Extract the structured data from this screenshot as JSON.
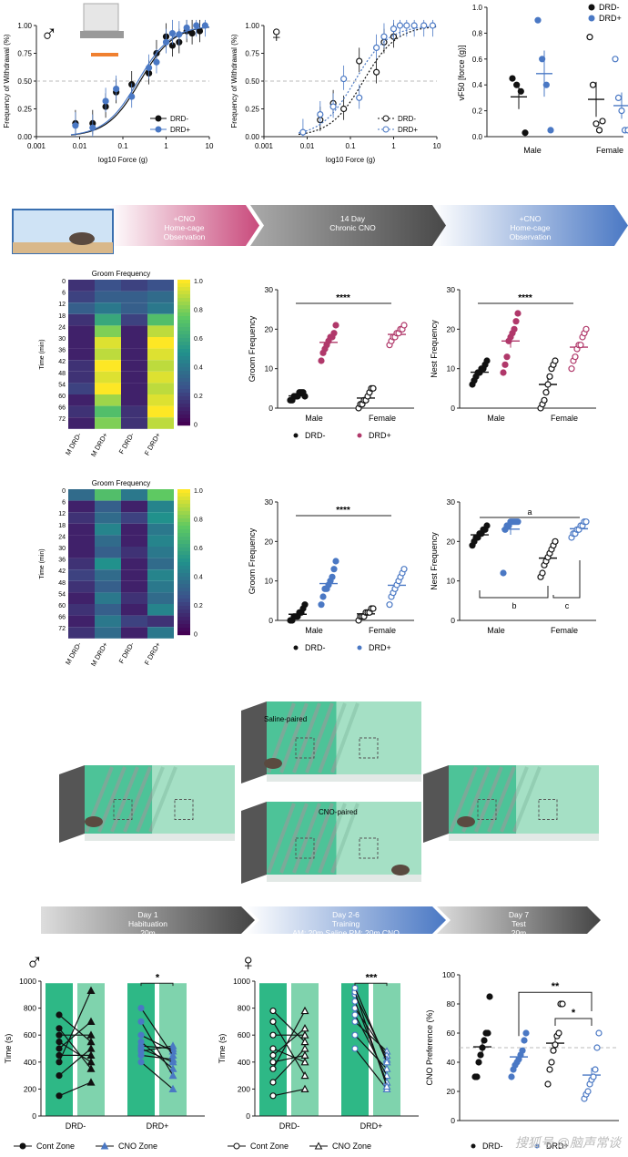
{
  "panel_a": {
    "male": {
      "sex_symbol": "♂",
      "ylabel": "Frequency of Withdrawal (%)",
      "xlabel": "log10 Force (g)",
      "yticks": [
        "0.00",
        "0.25",
        "0.50",
        "0.75",
        "1.00"
      ],
      "xticks": [
        "0.001",
        "0.01",
        "0.1",
        "1",
        "10"
      ],
      "legend": [
        "DRD-",
        "DRD+"
      ]
    },
    "female": {
      "sex_symbol": "♀",
      "ylabel": "Frequency of Withdrawal (%)",
      "xlabel": "log10 Force (g)",
      "yticks": [
        "0.00",
        "0.25",
        "0.50",
        "0.75",
        "1.00"
      ],
      "xticks": [
        "0.001",
        "0.01",
        "0.1",
        "1",
        "10"
      ],
      "legend": [
        "DRD-",
        "DRD+"
      ]
    },
    "vf50": {
      "ylabel": "vF50 [force (g)]",
      "yticks": [
        "0.0",
        "0.2",
        "0.4",
        "0.6",
        "0.8",
        "1.0"
      ],
      "categories": [
        "Male",
        "Female"
      ],
      "legend": [
        "DRD-",
        "DRD+"
      ]
    }
  },
  "timeline1": {
    "steps": [
      "+CNO\nHome-cage\nObservation",
      "14 Day\nChronic CNO",
      "+CNO\nHome-cage\nObservation"
    ]
  },
  "heatmaps": [
    {
      "title": "Groom Frequency",
      "ylabel": "Time (min)",
      "row_labels": [
        "0",
        "6",
        "12",
        "18",
        "24",
        "30",
        "36",
        "42",
        "48",
        "54",
        "60",
        "66",
        "72"
      ],
      "col_labels": [
        "M DRD-",
        "M DRD+",
        "F DRD-",
        "F DRD+"
      ],
      "colorbar_ticks": [
        "1.0",
        "0.8",
        "0.6",
        "0.4",
        "0.2",
        "0"
      ]
    },
    {
      "title": "Groom Frequency",
      "ylabel": "Time (min)",
      "row_labels": [
        "0",
        "6",
        "12",
        "18",
        "24",
        "30",
        "36",
        "42",
        "48",
        "54",
        "60",
        "66",
        "72"
      ],
      "col_labels": [
        "M DRD-",
        "M DRD+",
        "F DRD-",
        "F DRD+"
      ],
      "colorbar_ticks": [
        "1.0",
        "0.8",
        "0.6",
        "0.4",
        "0.2",
        "0"
      ]
    }
  ],
  "dotplots": {
    "groom1": {
      "ylabel": "Groom Frequency",
      "yticks": [
        "0",
        "10",
        "20",
        "30"
      ],
      "categories": [
        "Male",
        "Female"
      ],
      "sig": "****",
      "legend": [
        "DRD-",
        "DRD+"
      ]
    },
    "nest1": {
      "ylabel": "Nest Frequency",
      "yticks": [
        "0",
        "10",
        "20",
        "30"
      ],
      "categories": [
        "Male",
        "Female"
      ],
      "sig": "****"
    },
    "groom2": {
      "ylabel": "Groom Frequency",
      "yticks": [
        "0",
        "10",
        "20",
        "30"
      ],
      "categories": [
        "Male",
        "Female"
      ],
      "sig": "****",
      "legend": [
        "DRD-",
        "DRD+"
      ]
    },
    "nest2": {
      "ylabel": "Nest Frequency",
      "yticks": [
        "0",
        "10",
        "20",
        "30"
      ],
      "categories": [
        "Male",
        "Female"
      ],
      "sig_a": "a",
      "sig_b": "b",
      "sig_c": "c"
    }
  },
  "cpp_boxes": {
    "saline_label": "Saline-paired",
    "cno_label": "CNO-paired"
  },
  "timeline2": {
    "steps": [
      "Day 1\nHabituation\n20m",
      "Day 2-6\nTraining\nAM: 20m Saline   PM: 20m  CNO",
      "Day 7\nTest\n20m"
    ]
  },
  "panel_cpp": {
    "male": {
      "sex_symbol": "♂",
      "ylabel": "Time (s)",
      "yticks": [
        "0",
        "200",
        "400",
        "600",
        "800",
        "1000"
      ],
      "groups": [
        "DRD-",
        "DRD+"
      ],
      "sig": "*",
      "legend": [
        "Cont Zone",
        "CNO Zone"
      ]
    },
    "female": {
      "sex_symbol": "♀",
      "ylabel": "Time (s)",
      "yticks": [
        "0",
        "200",
        "400",
        "600",
        "800",
        "1000"
      ],
      "groups": [
        "DRD-",
        "DRD+"
      ],
      "sig": "***",
      "legend": [
        "Cont Zone",
        "CNO Zone"
      ]
    },
    "pref": {
      "ylabel": "CNO Preference (%)",
      "yticks": [
        "0",
        "20",
        "40",
        "60",
        "80",
        "100"
      ],
      "sig1": "**",
      "sig2": "*",
      "legend": [
        "DRD-",
        "DRD+"
      ]
    }
  },
  "watermark": "搜狐号 @脑声常谈",
  "colors": {
    "black": "#111111",
    "blue": "#4a78c4",
    "pink": "#b0386a",
    "green": "#2eb886",
    "lightgreen": "#7fd3ad"
  },
  "chart_data": [
    {
      "type": "line",
      "title": "",
      "xlabel": "log10 Force (g)",
      "ylabel": "Frequency of Withdrawal (%)",
      "x_scale": "log",
      "xlim": [
        0.001,
        10
      ],
      "ylim": [
        0,
        1
      ],
      "series": [
        {
          "name": "DRD-",
          "x": [
            0.008,
            0.02,
            0.04,
            0.07,
            0.16,
            0.4,
            0.6,
            1,
            1.4,
            2,
            3,
            4,
            6
          ],
          "y": [
            0.12,
            0.12,
            0.27,
            0.4,
            0.47,
            0.57,
            0.75,
            0.9,
            0.82,
            0.85,
            0.95,
            0.93,
            0.95
          ]
        },
        {
          "name": "DRD+",
          "x": [
            0.008,
            0.02,
            0.04,
            0.07,
            0.16,
            0.4,
            0.6,
            1,
            1.4,
            2,
            3,
            5,
            8
          ],
          "y": [
            0.1,
            0.08,
            0.32,
            0.43,
            0.36,
            0.62,
            0.67,
            0.85,
            0.93,
            0.92,
            0.98,
            1.0,
            1.0
          ]
        }
      ]
    },
    {
      "type": "line",
      "title": "",
      "xlabel": "log10 Force (g)",
      "ylabel": "Frequency of Withdrawal (%)",
      "x_scale": "log",
      "xlim": [
        0.001,
        10
      ],
      "ylim": [
        0,
        1
      ],
      "series": [
        {
          "name": "DRD-",
          "x": [
            0.02,
            0.04,
            0.07,
            0.16,
            0.4,
            0.6,
            1
          ],
          "y": [
            0.15,
            0.3,
            0.25,
            0.68,
            0.58,
            0.85,
            0.9
          ]
        },
        {
          "name": "DRD+",
          "x": [
            0.008,
            0.02,
            0.04,
            0.07,
            0.16,
            0.4,
            0.6,
            1,
            1.4,
            2,
            3,
            5,
            8
          ],
          "y": [
            0.04,
            0.2,
            0.27,
            0.52,
            0.35,
            0.8,
            0.9,
            0.97,
            1.0,
            1.0,
            1.0,
            1.0,
            1.0
          ]
        }
      ]
    },
    {
      "type": "scatter",
      "ylabel": "vF50 [force (g)]",
      "ylim": [
        0,
        1
      ],
      "categories": [
        "Male",
        "Female"
      ],
      "series": [
        {
          "name": "DRD-",
          "Male": [
            0.45,
            0.4,
            0.35,
            0.03
          ],
          "Female": [
            0.77,
            0.4,
            0.1,
            0.05,
            0.12
          ]
        },
        {
          "name": "DRD+",
          "Male": [
            0.9,
            0.6,
            0.4,
            0.05
          ],
          "Female": [
            0.6,
            0.3,
            0.2,
            0.05,
            0.05
          ]
        }
      ]
    },
    {
      "type": "heatmap",
      "title": "Groom Frequency",
      "rows": [
        "0",
        "6",
        "12",
        "18",
        "24",
        "30",
        "36",
        "42",
        "48",
        "54",
        "60",
        "66",
        "72"
      ],
      "cols": [
        "M DRD-",
        "M DRD+",
        "F DRD-",
        "F DRD+"
      ],
      "values": [
        [
          0.15,
          0.25,
          0.2,
          0.25
        ],
        [
          0.2,
          0.3,
          0.3,
          0.35
        ],
        [
          0.3,
          0.4,
          0.3,
          0.4
        ],
        [
          0.15,
          0.6,
          0.2,
          0.7
        ],
        [
          0.1,
          0.8,
          0.1,
          0.9
        ],
        [
          0.1,
          0.95,
          0.1,
          1.0
        ],
        [
          0.1,
          0.9,
          0.1,
          0.95
        ],
        [
          0.15,
          1.0,
          0.1,
          0.9
        ],
        [
          0.15,
          0.95,
          0.1,
          0.95
        ],
        [
          0.2,
          1.0,
          0.1,
          0.9
        ],
        [
          0.1,
          0.85,
          0.1,
          0.95
        ],
        [
          0.15,
          0.7,
          0.15,
          1.0
        ],
        [
          0.1,
          0.8,
          0.15,
          0.9
        ]
      ]
    },
    {
      "type": "heatmap",
      "title": "Groom Frequency",
      "rows": [
        "0",
        "6",
        "12",
        "18",
        "24",
        "30",
        "36",
        "42",
        "48",
        "54",
        "60",
        "66",
        "72"
      ],
      "cols": [
        "M DRD-",
        "M DRD+",
        "F DRD-",
        "F DRD+"
      ],
      "values": [
        [
          0.35,
          0.7,
          0.4,
          0.75
        ],
        [
          0.1,
          0.3,
          0.1,
          0.45
        ],
        [
          0.15,
          0.35,
          0.2,
          0.5
        ],
        [
          0.1,
          0.45,
          0.1,
          0.4
        ],
        [
          0.1,
          0.35,
          0.1,
          0.45
        ],
        [
          0.1,
          0.3,
          0.15,
          0.4
        ],
        [
          0.15,
          0.5,
          0.1,
          0.35
        ],
        [
          0.2,
          0.35,
          0.1,
          0.45
        ],
        [
          0.15,
          0.3,
          0.1,
          0.4
        ],
        [
          0.1,
          0.4,
          0.15,
          0.35
        ],
        [
          0.15,
          0.3,
          0.1,
          0.45
        ],
        [
          0.1,
          0.4,
          0.2,
          0.15
        ],
        [
          0.15,
          0.35,
          0.1,
          0.4
        ]
      ]
    },
    {
      "type": "scatter",
      "ylabel": "Groom Frequency",
      "ylim": [
        0,
        30
      ],
      "categories": [
        "Male",
        "Female"
      ],
      "series": [
        {
          "name": "DRD-",
          "Male": [
            2,
            2,
            3,
            3,
            3,
            4,
            4,
            4,
            3
          ],
          "Female": [
            0,
            1,
            1,
            2,
            2,
            3,
            4,
            5,
            5
          ]
        },
        {
          "name": "DRD+",
          "Male": [
            12,
            14,
            15,
            16,
            17,
            18,
            18,
            19,
            21
          ],
          "Female": [
            16,
            17,
            18,
            18,
            19,
            19,
            20,
            20,
            21
          ]
        }
      ]
    },
    {
      "type": "scatter",
      "ylabel": "Nest Frequency",
      "ylim": [
        0,
        30
      ],
      "categories": [
        "Male",
        "Female"
      ],
      "series": [
        {
          "name": "DRD-",
          "Male": [
            6,
            7,
            8,
            9,
            9,
            10,
            10,
            11,
            12
          ],
          "Female": [
            0,
            1,
            2,
            4,
            6,
            8,
            10,
            11,
            12
          ]
        },
        {
          "name": "DRD+",
          "Male": [
            9,
            11,
            13,
            17,
            18,
            19,
            20,
            22,
            24
          ],
          "Female": [
            10,
            12,
            13,
            15,
            16,
            16,
            18,
            19,
            20
          ]
        }
      ]
    },
    {
      "type": "scatter",
      "ylabel": "Groom Frequency",
      "ylim": [
        0,
        30
      ],
      "categories": [
        "Male",
        "Female"
      ],
      "series": [
        {
          "name": "DRD-",
          "Male": [
            0,
            0,
            1,
            1,
            1,
            2,
            2,
            3,
            4
          ],
          "Female": [
            0,
            1,
            1,
            1,
            2,
            2,
            2,
            3,
            3
          ]
        },
        {
          "name": "DRD+",
          "Male": [
            4,
            6,
            8,
            8,
            9,
            10,
            11,
            13,
            15
          ],
          "Female": [
            4,
            6,
            7,
            8,
            9,
            10,
            11,
            12,
            13
          ]
        }
      ]
    },
    {
      "type": "scatter",
      "ylabel": "Nest Frequency",
      "ylim": [
        0,
        30
      ],
      "categories": [
        "Male",
        "Female"
      ],
      "series": [
        {
          "name": "DRD-",
          "Male": [
            19,
            20,
            21,
            21,
            22,
            22,
            23,
            23,
            24
          ],
          "Female": [
            11,
            12,
            14,
            15,
            16,
            17,
            18,
            19,
            20
          ]
        },
        {
          "name": "DRD+",
          "Male": [
            12,
            23,
            24,
            24,
            25,
            25,
            25,
            25,
            25
          ],
          "Female": [
            21,
            22,
            22,
            23,
            23,
            24,
            24,
            25,
            25
          ]
        }
      ]
    },
    {
      "type": "scatter",
      "ylabel": "Time (s)",
      "ylim": [
        0,
        1000
      ],
      "panel": "male",
      "series": [
        {
          "name": "DRD- Cont Zone",
          "values": [
            150,
            300,
            400,
            450,
            500,
            550,
            600,
            650,
            750
          ]
        },
        {
          "name": "DRD- CNO Zone",
          "values": [
            250,
            350,
            400,
            450,
            500,
            550,
            600,
            700,
            930
          ]
        },
        {
          "name": "DRD+ Cont Zone",
          "values": [
            400,
            450,
            480,
            500,
            520,
            550,
            600,
            700,
            800
          ]
        },
        {
          "name": "DRD+ CNO Zone",
          "values": [
            200,
            300,
            350,
            400,
            420,
            450,
            480,
            500,
            520
          ]
        }
      ]
    },
    {
      "type": "scatter",
      "ylabel": "Time (s)",
      "ylim": [
        0,
        1000
      ],
      "panel": "female",
      "series": [
        {
          "name": "DRD- Cont Zone",
          "values": [
            150,
            250,
            350,
            400,
            450,
            500,
            600,
            700,
            780
          ]
        },
        {
          "name": "DRD- CNO Zone",
          "values": [
            200,
            300,
            400,
            450,
            500,
            550,
            600,
            650,
            780
          ]
        },
        {
          "name": "DRD+ Cont Zone",
          "values": [
            500,
            600,
            700,
            750,
            800,
            850,
            900,
            920,
            950
          ]
        },
        {
          "name": "DRD+ CNO Zone",
          "values": [
            200,
            220,
            250,
            300,
            350,
            400,
            420,
            450,
            480
          ]
        }
      ]
    },
    {
      "type": "scatter",
      "ylabel": "CNO Preference (%)",
      "ylim": [
        0,
        100
      ],
      "series": [
        {
          "name": "Male DRD-",
          "values": [
            30,
            30,
            40,
            45,
            50,
            55,
            60,
            60,
            85
          ]
        },
        {
          "name": "Male DRD+",
          "values": [
            30,
            35,
            38,
            40,
            42,
            45,
            48,
            55,
            60
          ]
        },
        {
          "name": "Female DRD-",
          "values": [
            25,
            35,
            40,
            48,
            52,
            58,
            60,
            80,
            80
          ]
        },
        {
          "name": "Female DRD+",
          "values": [
            15,
            18,
            20,
            25,
            28,
            30,
            35,
            50,
            60
          ]
        }
      ]
    }
  ]
}
